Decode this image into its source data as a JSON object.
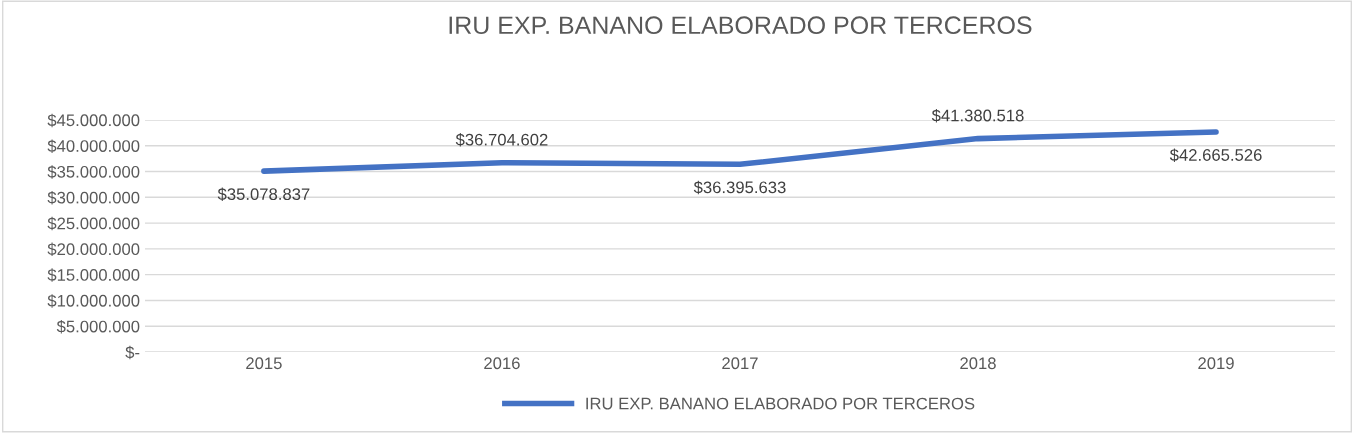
{
  "chart_data": {
    "type": "line",
    "title": "IRU EXP. BANANO ELABORADO POR TERCEROS",
    "categories": [
      "2015",
      "2016",
      "2017",
      "2018",
      "2019"
    ],
    "series": [
      {
        "name": "IRU EXP. BANANO ELABORADO POR TERCEROS",
        "color": "#4472c4",
        "values": [
          35078837,
          36704602,
          36395633,
          41380518,
          42665526
        ],
        "value_labels": [
          "$35.078.837",
          "$36.704.602",
          "$36.395.633",
          "$41.380.518",
          "$42.665.526"
        ]
      }
    ],
    "ylim": [
      0,
      45000000
    ],
    "yticks": [
      {
        "value": 0,
        "label": "$-"
      },
      {
        "value": 5000000,
        "label": "$5.000.000"
      },
      {
        "value": 10000000,
        "label": "$10.000.000"
      },
      {
        "value": 15000000,
        "label": "$15.000.000"
      },
      {
        "value": 20000000,
        "label": "$20.000.000"
      },
      {
        "value": 25000000,
        "label": "$25.000.000"
      },
      {
        "value": 30000000,
        "label": "$30.000.000"
      },
      {
        "value": 35000000,
        "label": "$35.000.000"
      },
      {
        "value": 40000000,
        "label": "$40.000.000"
      },
      {
        "value": 45000000,
        "label": "$45.000.000"
      }
    ],
    "grid": "y",
    "legend": "bottom",
    "marker": "none",
    "line_style": "solid"
  }
}
